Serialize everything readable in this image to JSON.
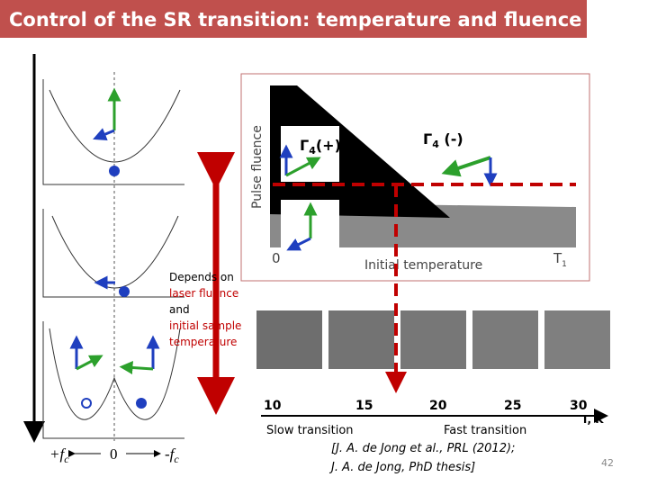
{
  "header": {
    "title": "Control of the SR transition:  temperature and fluence"
  },
  "phase_diagram": {
    "y_label": "Pulse fluence",
    "x_label": "Initial temperature",
    "origin": "0",
    "x_end": {
      "text": "T",
      "subscript": "1"
    },
    "gamma_plus": {
      "symbol": "Γ",
      "subscript": "4",
      "suffix": "(+)"
    },
    "gamma_minus": {
      "symbol": "Γ",
      "subscript": "4",
      "suffix": " (-)"
    }
  },
  "note": [
    "Depends on",
    "laser fluence",
    "and",
    "initial sample",
    "temperature"
  ],
  "temperature_axis": {
    "ticks": [
      "10",
      "15",
      "20",
      "25",
      "30"
    ],
    "unit": "T, K"
  },
  "transitions": {
    "slow": "Slow transition",
    "fast": "Fast transition"
  },
  "reference": [
    "[J. A. de Jong et al., PRL (2012);",
    "J. A. de Jong, PhD thesis]"
  ],
  "potential_axis": {
    "left": {
      "text": "+f",
      "subscript": "c"
    },
    "center": "0",
    "right": {
      "text": "-f",
      "subscript": "c"
    }
  },
  "page_number": "42"
}
